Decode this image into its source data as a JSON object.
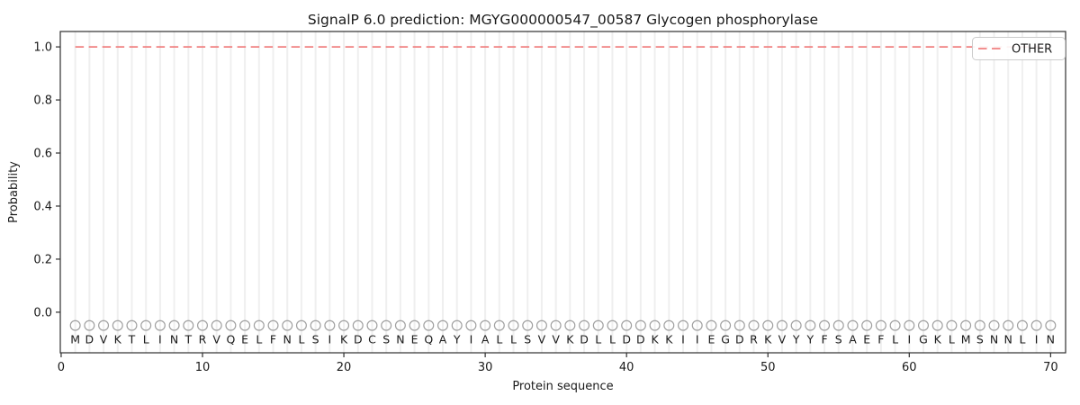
{
  "chart_data": {
    "type": "line",
    "title": "SignalP 6.0 prediction: MGYG000000547_00587 Glycogen phosphorylase",
    "xlabel": "Protein sequence",
    "ylabel": "Probability",
    "xlim": [
      -0.06,
      71.06
    ],
    "ylim": [
      -0.153,
      1.058
    ],
    "xticks": [
      0,
      10,
      20,
      30,
      40,
      50,
      60,
      70
    ],
    "yticks": [
      0,
      0.2,
      0.4,
      0.6,
      0.8,
      1.0
    ],
    "yticklabels": [
      "0.0",
      "0.2",
      "0.4",
      "0.6",
      "0.8",
      "1.0"
    ],
    "grid": {
      "vertical_per_residue": true,
      "horizontal": false
    },
    "legend": {
      "position": "upper-right",
      "label": "OTHER"
    },
    "series": [
      {
        "name": "OTHER",
        "line_style": "dashed",
        "color": "#f08080",
        "x_start": 1,
        "x_end": 70,
        "constant_y": 1.0
      }
    ],
    "sequence": {
      "marker": "open-circle",
      "marker_y": -0.05,
      "letters_y": -0.102,
      "letters": [
        "M",
        "D",
        "V",
        "K",
        "T",
        "L",
        "I",
        "N",
        "T",
        "R",
        "V",
        "Q",
        "E",
        "L",
        "F",
        "N",
        "L",
        "S",
        "I",
        "K",
        "D",
        "C",
        "S",
        "N",
        "E",
        "Q",
        "A",
        "Y",
        "I",
        "A",
        "L",
        "L",
        "S",
        "V",
        "V",
        "K",
        "D",
        "L",
        "L",
        "D",
        "D",
        "K",
        "K",
        "I",
        "I",
        "E",
        "G",
        "D",
        "R",
        "K",
        "V",
        "Y",
        "Y",
        "F",
        "S",
        "A",
        "E",
        "F",
        "L",
        "I",
        "G",
        "K",
        "L",
        "M",
        "S",
        "N",
        "N",
        "L",
        "I",
        "N"
      ]
    }
  },
  "colors": {
    "series_other": "#f08080",
    "grid": "#efefef",
    "marker": "#a0a0a0",
    "spine": "#2e2e2e",
    "text": "#1a1a1a",
    "legend_border": "#cccccc",
    "background": "#ffffff"
  }
}
